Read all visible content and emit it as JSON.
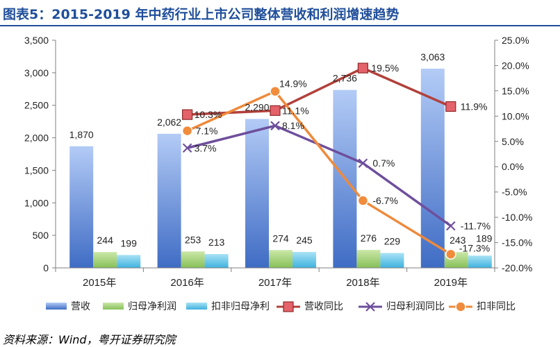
{
  "title": "图表5：2015-2019 年中药行业上市公司整体营收和利润增速趋势",
  "source": "资料来源：Wind，粤开证券研究院",
  "colors": {
    "title": "#1f4e9a",
    "revenue_bar": "#5b87d6",
    "profit_bar": "#8fc860",
    "nonrec_bar": "#56bde3",
    "revenue_line": "#b2403a",
    "profit_line": "#6e4f9c",
    "nonrec_line": "#ee8a3c"
  },
  "chart_data": {
    "type": "bar",
    "categories": [
      "2015年",
      "2016年",
      "2017年",
      "2018年",
      "2019年"
    ],
    "y_left": {
      "min": 0,
      "max": 3500,
      "ticks": [
        "0",
        "500",
        "1,000",
        "1,500",
        "2,000",
        "2,500",
        "3,000",
        "3,500"
      ]
    },
    "y_right": {
      "min": -20,
      "max": 25,
      "ticks": [
        "-20.0%",
        "-15.0%",
        "-10.0%",
        "-5.0%",
        "0.0%",
        "5.0%",
        "10.0%",
        "15.0%",
        "20.0%",
        "25.0%"
      ]
    },
    "bar_series": [
      {
        "name": "营收",
        "values": [
          1870,
          2062,
          2290,
          2736,
          3063
        ],
        "labels": [
          "1,870",
          "2,062",
          "2,290",
          "2,736",
          "3,063"
        ]
      },
      {
        "name": "归母净利润",
        "values": [
          244,
          253,
          274,
          276,
          243
        ],
        "labels": [
          "244",
          "253",
          "274",
          "276",
          "243"
        ]
      },
      {
        "name": "扣非归母净利",
        "values": [
          199,
          213,
          245,
          229,
          189
        ],
        "labels": [
          "199",
          "213",
          "245",
          "229",
          "189"
        ]
      }
    ],
    "line_series": [
      {
        "name": "营收同比",
        "values": [
          null,
          10.3,
          11.1,
          19.5,
          11.9
        ],
        "labels": [
          "",
          "10.3%",
          "11.1%",
          "19.5%",
          "11.9%"
        ],
        "marker": "square"
      },
      {
        "name": "归母利润同比",
        "values": [
          null,
          3.7,
          8.1,
          0.7,
          -11.7
        ],
        "labels": [
          "",
          "3.7%",
          "8.1%",
          "0.7%",
          "-11.7%"
        ],
        "marker": "x"
      },
      {
        "name": "扣非同比",
        "values": [
          null,
          7.1,
          14.9,
          -6.7,
          -17.3
        ],
        "labels": [
          "",
          "7.1%",
          "14.9%",
          "-6.7%",
          "-17.3%"
        ],
        "marker": "circle"
      }
    ],
    "legend": [
      "营收",
      "归母净利润",
      "扣非归母净利",
      "营收同比",
      "归母利润同比",
      "扣非同比"
    ],
    "legend_position": "bottom",
    "grid": false
  }
}
